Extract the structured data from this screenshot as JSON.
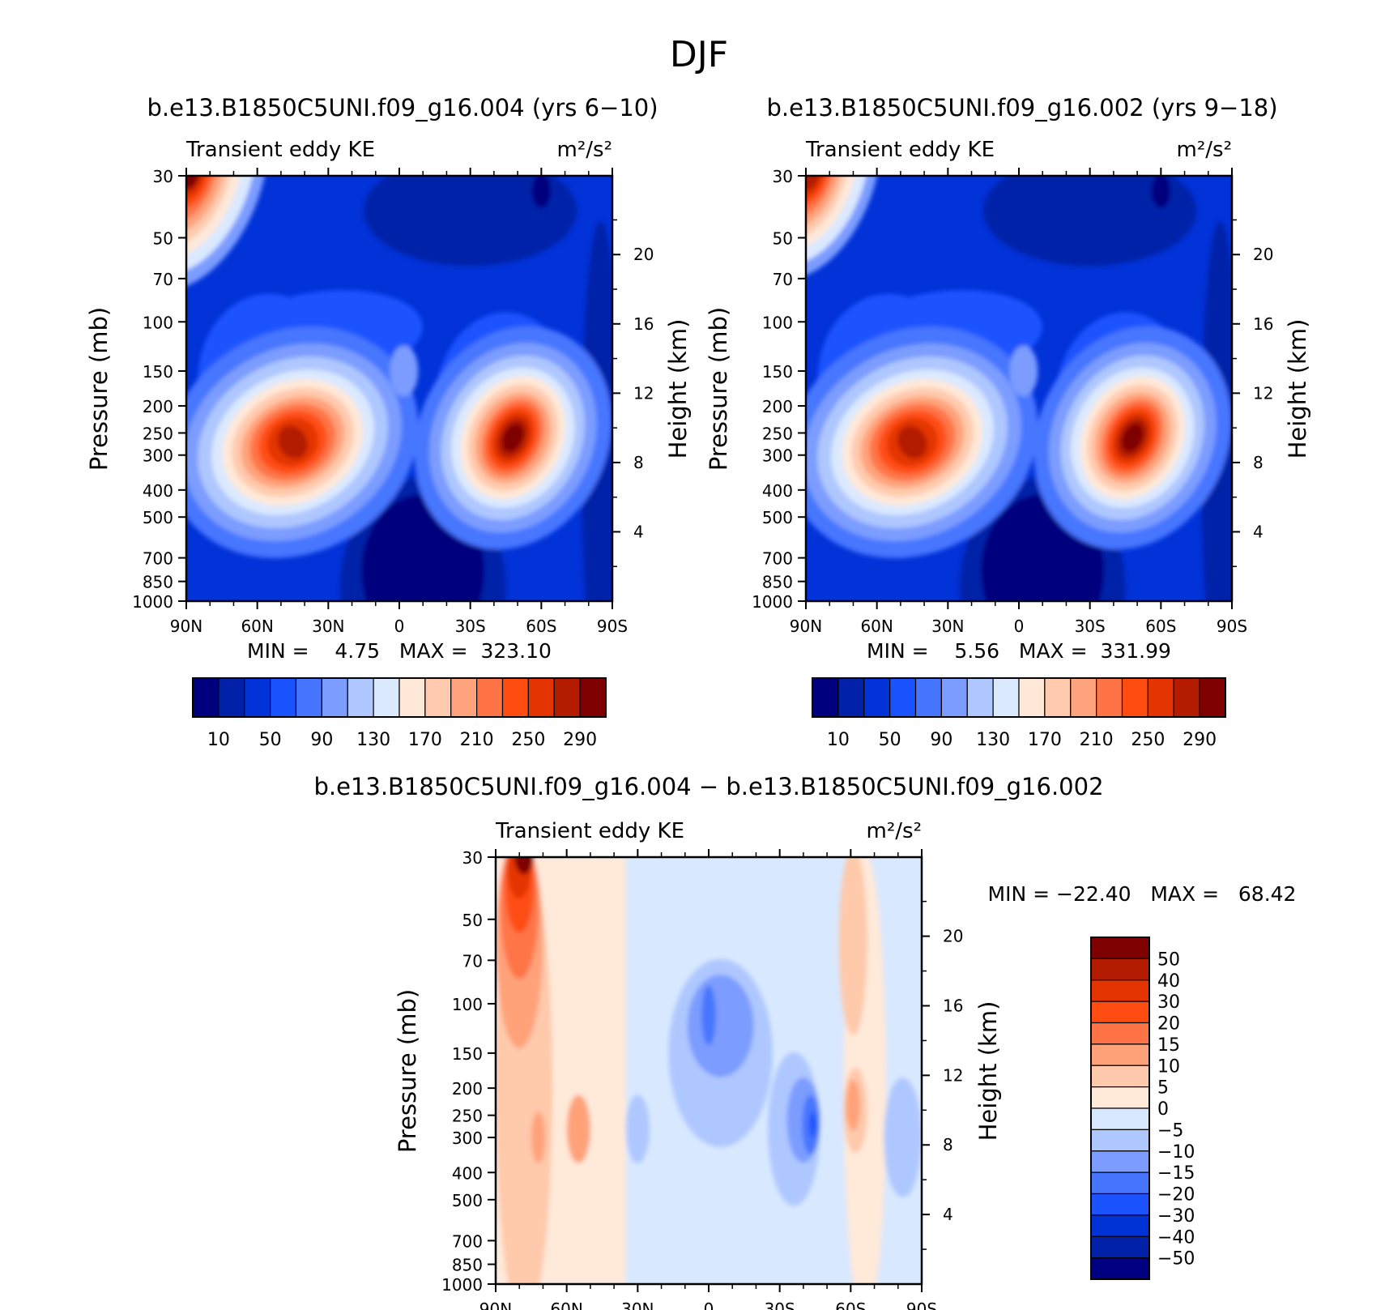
{
  "figure": {
    "title": "DJF"
  },
  "colors": {
    "abs_levels": [
      "#00007f",
      "#0021a8",
      "#0233d8",
      "#1a53ff",
      "#4676ff",
      "#7c9cff",
      "#afc7ff",
      "#dbe9ff",
      "#ffe8d8",
      "#ffcaae",
      "#ffa37c",
      "#ff7446",
      "#ff4d12",
      "#e43402",
      "#b31c00",
      "#7f0000"
    ],
    "diff_levels": [
      "#000080",
      "#0021a8",
      "#0033d6",
      "#1a53ff",
      "#4676ff",
      "#7c9cff",
      "#afc7ff",
      "#d8e8ff",
      "#ffe9d9",
      "#ffc9ab",
      "#ffa27a",
      "#ff7446",
      "#ff4d12",
      "#e43402",
      "#b31c00",
      "#7f0000"
    ]
  },
  "chart_data": [
    {
      "type": "heatmap",
      "title": "b.e13.B1850C5UNI.f09_g16.004 (yrs 6−10)",
      "left_string": "Transient eddy KE",
      "right_string": "m²/s²",
      "xlabel": "",
      "ylabel": "Pressure (mb)",
      "y2label": "Height (km)",
      "x_ticks": [
        "90N",
        "60N",
        "30N",
        "0",
        "30S",
        "60S",
        "90S"
      ],
      "y_ticks": [
        "30",
        "50",
        "70",
        "100",
        "150",
        "200",
        "250",
        "300",
        "400",
        "500",
        "700",
        "850",
        "1000"
      ],
      "y2_ticks": [
        "20",
        "16",
        "12",
        "8",
        "4"
      ],
      "ylim": [
        1000,
        30
      ],
      "yscale": "log",
      "grid": false,
      "stats": "MIN =    4.75   MAX =  323.10",
      "levels": [
        "10",
        "50",
        "90",
        "130",
        "170",
        "210",
        "250",
        "290"
      ],
      "features": [
        {
          "x": -40,
          "p": 260,
          "value": 290
        },
        {
          "x": 48,
          "p": 255,
          "value": 323
        },
        {
          "x": -85,
          "p": 30,
          "value": 320
        }
      ]
    },
    {
      "type": "heatmap",
      "title": "b.e13.B1850C5UNI.f09_g16.002 (yrs 9−18)",
      "left_string": "Transient eddy KE",
      "right_string": "m²/s²",
      "xlabel": "",
      "ylabel": "Pressure (mb)",
      "y2label": "Height (km)",
      "x_ticks": [
        "90N",
        "60N",
        "30N",
        "0",
        "30S",
        "60S",
        "90S"
      ],
      "y_ticks": [
        "30",
        "50",
        "70",
        "100",
        "150",
        "200",
        "250",
        "300",
        "400",
        "500",
        "700",
        "850",
        "1000"
      ],
      "y2_ticks": [
        "20",
        "16",
        "12",
        "8",
        "4"
      ],
      "ylim": [
        1000,
        30
      ],
      "yscale": "log",
      "grid": false,
      "stats": "MIN =    5.56   MAX =  331.99",
      "levels": [
        "10",
        "50",
        "90",
        "130",
        "170",
        "210",
        "250",
        "290"
      ],
      "features": [
        {
          "x": -38,
          "p": 255,
          "value": 290
        },
        {
          "x": 48,
          "p": 250,
          "value": 332
        },
        {
          "x": -85,
          "p": 30,
          "value": 250
        }
      ]
    },
    {
      "type": "heatmap",
      "title": "b.e13.B1850C5UNI.f09_g16.004 − b.e13.B1850C5UNI.f09_g16.002",
      "left_string": "Transient eddy KE",
      "right_string": "m²/s²",
      "xlabel": "",
      "ylabel": "Pressure (mb)",
      "y2label": "Height (km)",
      "x_ticks": [
        "90N",
        "60N",
        "30N",
        "0",
        "30S",
        "60S",
        "90S"
      ],
      "y_ticks": [
        "30",
        "50",
        "70",
        "100",
        "150",
        "200",
        "250",
        "300",
        "400",
        "500",
        "700",
        "850",
        "1000"
      ],
      "y2_ticks": [
        "20",
        "16",
        "12",
        "8",
        "4"
      ],
      "ylim": [
        1000,
        30
      ],
      "yscale": "log",
      "grid": false,
      "stats": "MIN = −22.40   MAX =   68.42",
      "levels": [
        "50",
        "40",
        "30",
        "20",
        "15",
        "10",
        "5",
        "0",
        "−5",
        "−10",
        "−15",
        "−20",
        "−30",
        "−40",
        "−50"
      ],
      "features": [
        {
          "x": -78,
          "p": 30,
          "value": 68
        },
        {
          "x": 4,
          "p": 110,
          "value": -20
        },
        {
          "x": 43,
          "p": 260,
          "value": -22
        },
        {
          "x": 60,
          "p": 230,
          "value": 20
        }
      ]
    }
  ]
}
